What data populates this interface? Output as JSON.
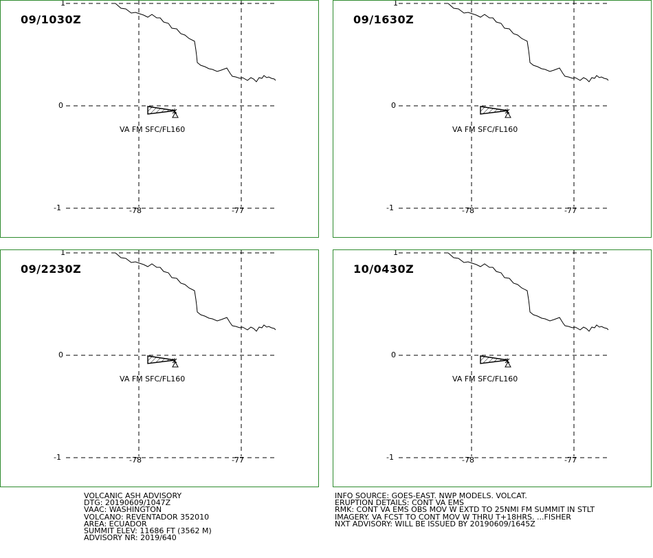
{
  "panels": [
    {
      "time": "09/1030Z"
    },
    {
      "time": "09/1630Z"
    },
    {
      "time": "09/2230Z"
    },
    {
      "time": "10/0430Z"
    }
  ],
  "map": {
    "lat_labels": [
      "1",
      "0",
      "-1"
    ],
    "lon_labels": [
      "-78",
      "-77"
    ],
    "ash_label": "VA FM SFC/FL160"
  },
  "advisory_left": [
    "VOLCANIC ASH ADVISORY",
    "DTG: 20190609/1047Z",
    "VAAC: WASHINGTON",
    "VOLCANO: REVENTADOR 352010",
    "AREA: ECUADOR",
    "SUMMIT ELEV: 11686 FT (3562 M)",
    "ADVISORY NR: 2019/640"
  ],
  "advisory_right": [
    "INFO SOURCE: GOES-EAST. NWP MODELS. VOLCAT.",
    "ERUPTION DETAILS: CONT VA EMS",
    "RMK: CONT VA EMS OBS MOV W EXTD TO 25NMI FM SUMMIT IN STLT",
    "IMAGERY. VA FCST TO CONT MOV W THRU T+18HRS. ...FISHER",
    "NXT ADVISORY: WILL BE ISSUED BY 20190609/1645Z"
  ],
  "colors": {
    "panel_border": "#2e8b2e",
    "lines": "#000000"
  }
}
